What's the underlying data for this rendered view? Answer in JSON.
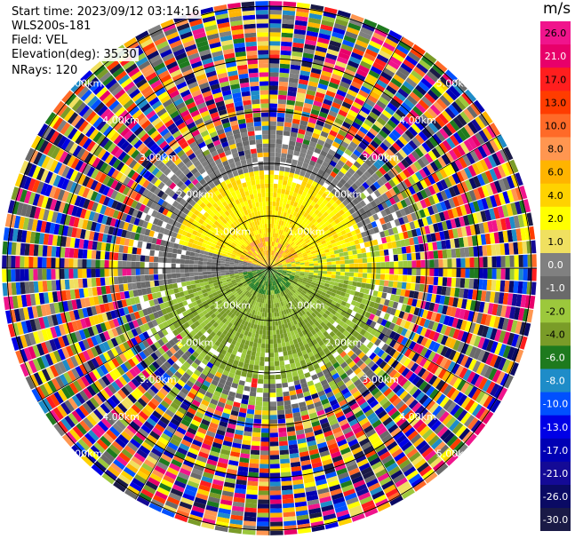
{
  "header": {
    "start_time": "Start time: 2023/09/12 03:14:16",
    "instrument": "WLS200s-181",
    "field": "Field: VEL",
    "elevation": "Elevation(deg): 35.30",
    "nrays": "NRays: 120"
  },
  "colorbar": {
    "unit": "m/s",
    "ticks": [
      "26.0",
      "21.0",
      "17.0",
      "13.0",
      "10.0",
      "8.0",
      "6.0",
      "4.0",
      "2.0",
      "1.0",
      "0.0",
      "-1.0",
      "-2.0",
      "-4.0",
      "-6.0",
      "-8.0",
      "-10.0",
      "-13.0",
      "-17.0",
      "-21.0",
      "-26.0",
      "-30.0"
    ],
    "colors": [
      "#f0148c",
      "#e8006a",
      "#ff1e1e",
      "#ff3c00",
      "#ff6a28",
      "#ff9650",
      "#ffb400",
      "#ffd200",
      "#ffff00",
      "#f0e060",
      "#808080",
      "#6a6a6a",
      "#9cc83c",
      "#7a9c28",
      "#1e7a1e",
      "#1e8cc8",
      "#0050ff",
      "#0000e6",
      "#0000b4",
      "#140a96",
      "#0a0a64",
      "#1a1a46"
    ]
  },
  "chart_data": {
    "type": "heatmap",
    "title": "",
    "field": "VEL",
    "projection": "polar (PPI)",
    "nrays": 120,
    "elevation_deg": 35.3,
    "range_ring_labels": [
      "1.00km",
      "2.00km",
      "3.00km",
      "4.00km",
      "5.00km"
    ],
    "range_rings_km": [
      1,
      2,
      3,
      4,
      5
    ],
    "max_range_km": 5.1,
    "velocity_levels_ms": [
      26.0,
      21.0,
      17.0,
      13.0,
      10.0,
      8.0,
      6.0,
      4.0,
      2.0,
      1.0,
      0.0,
      -1.0,
      -2.0,
      -4.0,
      -6.0,
      -8.0,
      -10.0,
      -13.0,
      -17.0,
      -21.0,
      -26.0,
      -30.0
    ],
    "regions": [
      {
        "range_km": [
          0,
          0.6
        ],
        "sector": "north",
        "velocity_ms": "4.0 to 6.0"
      },
      {
        "range_km": [
          0.4,
          1.9
        ],
        "sector": "north",
        "velocity_ms": "1.0 to 4.0"
      },
      {
        "range_km": [
          1.0,
          2.5
        ],
        "sector": "west-north",
        "velocity_ms": "0.0 to -1.0"
      },
      {
        "range_km": [
          0,
          0.5
        ],
        "sector": "south",
        "velocity_ms": "-4.0 to -6.0"
      },
      {
        "range_km": [
          0.5,
          2.5
        ],
        "sector": "south",
        "velocity_ms": "-1.0 to -4.0"
      },
      {
        "range_km": [
          2.5,
          5.1
        ],
        "sector": "all",
        "velocity_ms": "noise (-30.0 to 26.0)"
      }
    ]
  }
}
